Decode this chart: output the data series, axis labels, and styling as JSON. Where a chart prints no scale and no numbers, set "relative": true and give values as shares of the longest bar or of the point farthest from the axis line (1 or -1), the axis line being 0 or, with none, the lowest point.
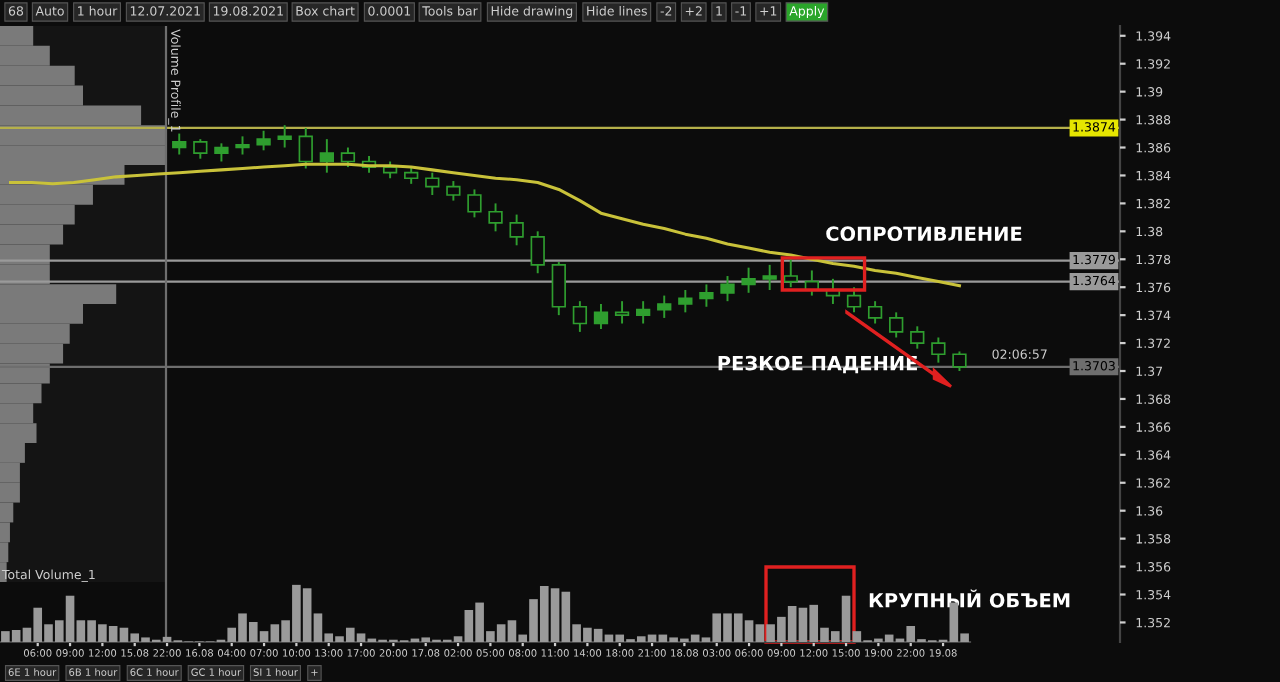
{
  "chart_data": [
    {
      "type": "candlestick",
      "color": "#2f9e2f",
      "grid": false,
      "tick_labels": "y",
      "ylim": [
        1.3506,
        1.3947
      ],
      "yticks": [
        1.352,
        1.354,
        1.356,
        1.358,
        1.36,
        1.362,
        1.364,
        1.366,
        1.368,
        1.37,
        1.372,
        1.374,
        1.376,
        1.378,
        1.38,
        1.382,
        1.384,
        1.386,
        1.388,
        1.39,
        1.392,
        1.394
      ],
      "categories": [
        null,
        null,
        null,
        null,
        null,
        null,
        null,
        null,
        null,
        null,
        null,
        null,
        null,
        null,
        null,
        null,
        null,
        null,
        null,
        null,
        null,
        null,
        null,
        null,
        null,
        null,
        null,
        null,
        null,
        null,
        null,
        null,
        null,
        null,
        null,
        null,
        null,
        null,
        null,
        null,
        null,
        null,
        null,
        null,
        null,
        null
      ],
      "ohlc": [
        null,
        null,
        null,
        null,
        null,
        null,
        null,
        null,
        [
          1.386,
          1.387,
          1.3855,
          1.3864
        ],
        [
          1.3864,
          1.3866,
          1.3852,
          1.3856
        ],
        [
          1.3856,
          1.3863,
          1.385,
          1.386
        ],
        [
          1.386,
          1.3868,
          1.3855,
          1.3862
        ],
        [
          1.3862,
          1.3872,
          1.3858,
          1.3866
        ],
        [
          1.3866,
          1.3876,
          1.386,
          1.3868
        ],
        [
          1.3868,
          1.3874,
          1.3845,
          1.385
        ],
        [
          1.385,
          1.3866,
          1.3842,
          1.3856
        ],
        [
          1.3856,
          1.386,
          1.3846,
          1.385
        ],
        [
          1.385,
          1.3854,
          1.3842,
          1.3846
        ],
        [
          1.3846,
          1.385,
          1.3838,
          1.3842
        ],
        [
          1.3842,
          1.3846,
          1.3834,
          1.3838
        ],
        [
          1.3838,
          1.3842,
          1.3826,
          1.3832
        ],
        [
          1.3832,
          1.3836,
          1.3822,
          1.3826
        ],
        [
          1.3826,
          1.383,
          1.381,
          1.3814
        ],
        [
          1.3814,
          1.382,
          1.38,
          1.3806
        ],
        [
          1.3806,
          1.3812,
          1.379,
          1.3796
        ],
        [
          1.3796,
          1.38,
          1.377,
          1.3776
        ],
        [
          1.3776,
          1.3778,
          1.374,
          1.3746
        ],
        [
          1.3746,
          1.375,
          1.3728,
          1.3734
        ],
        [
          1.3734,
          1.3748,
          1.373,
          1.3742
        ],
        [
          1.3742,
          1.375,
          1.3734,
          1.374
        ],
        [
          1.374,
          1.375,
          1.3734,
          1.3744
        ],
        [
          1.3744,
          1.3754,
          1.3738,
          1.3748
        ],
        [
          1.3748,
          1.3758,
          1.3742,
          1.3752
        ],
        [
          1.3752,
          1.3762,
          1.3746,
          1.3756
        ],
        [
          1.3756,
          1.3768,
          1.375,
          1.3762
        ],
        [
          1.3762,
          1.3774,
          1.3756,
          1.3766
        ],
        [
          1.3766,
          1.3776,
          1.3758,
          1.3768
        ],
        [
          1.3768,
          1.3782,
          1.376,
          1.3764
        ],
        [
          1.3764,
          1.3772,
          1.3754,
          1.3758
        ],
        [
          1.3758,
          1.3766,
          1.3748,
          1.3754
        ],
        [
          1.3754,
          1.376,
          1.3742,
          1.3746
        ],
        [
          1.3746,
          1.375,
          1.3734,
          1.3738
        ],
        [
          1.3738,
          1.3742,
          1.3724,
          1.3728
        ],
        [
          1.3728,
          1.3732,
          1.3716,
          1.372
        ],
        [
          1.372,
          1.3724,
          1.3706,
          1.3712
        ],
        [
          1.3712,
          1.3714,
          1.37,
          1.3703
        ]
      ],
      "series": [
        {
          "type": "line",
          "color": "#c9c23a",
          "values": [
            1.3835,
            1.3835,
            1.3834,
            1.3835,
            1.3837,
            1.3839,
            1.384,
            1.3841,
            1.3842,
            1.3843,
            1.3844,
            1.3845,
            1.3846,
            1.3847,
            1.3848,
            1.3848,
            1.3848,
            1.3847,
            1.3847,
            1.3846,
            1.3844,
            1.3842,
            1.384,
            1.3838,
            1.3837,
            1.3835,
            1.383,
            1.3822,
            1.3813,
            1.3809,
            1.3805,
            1.3802,
            1.3798,
            1.3795,
            1.3791,
            1.3788,
            1.3785,
            1.3783,
            1.378,
            1.3777,
            1.3775,
            1.3772,
            1.377,
            1.3767,
            1.3764,
            1.3761
          ]
        }
      ],
      "ref_lines": [
        {
          "axis": "y",
          "value": 1.3874,
          "label": "1.3874",
          "color": "#b5b04a"
        },
        {
          "axis": "y",
          "value": 1.3779,
          "label": "1.3779",
          "color": "#9a9a9a"
        },
        {
          "axis": "y",
          "value": 1.3764,
          "label": "1.3764",
          "color": "#9a9a9a"
        },
        {
          "axis": "y",
          "value": 1.3703,
          "label": "1.3703",
          "color": "#6e6e6e"
        }
      ],
      "annotations": [
        "СОПРОТИВЛЕНИЕ",
        "РЕЗКОЕ ПАДЕНИЕ",
        "02:06:57",
        "Volume Profile_1"
      ]
    },
    {
      "type": "bar",
      "title": "Total Volume_1",
      "color": "#9a9a9a",
      "relative": true,
      "tick_labels": "x",
      "categories": [
        null,
        null,
        null,
        "06:00",
        null,
        null,
        "09:00",
        null,
        null,
        "12:00",
        null,
        null,
        "15.08",
        null,
        null,
        "22:00",
        null,
        null,
        "16.08",
        null,
        null,
        "04:00",
        null,
        null,
        "07:00",
        null,
        null,
        "10:00",
        null,
        null,
        "13:00",
        null,
        null,
        "17:00",
        null,
        null,
        "20:00",
        null,
        null,
        "17.08",
        null,
        null,
        "02:00",
        null,
        null,
        "05:00",
        null,
        null,
        "08:00",
        null,
        null,
        "11:00",
        null,
        null,
        "14:00",
        null,
        null,
        "18:00",
        null,
        null,
        "21:00",
        null,
        null,
        "18.08",
        null,
        null,
        "03:00",
        null,
        null,
        "06:00",
        null,
        null,
        "09:00",
        null,
        null,
        "12:00",
        null,
        null,
        "15:00",
        null,
        null,
        "19:00",
        null,
        null,
        "22:00",
        null,
        null,
        "19.08",
        null,
        null
      ],
      "values": [
        0.19,
        0.21,
        0.25,
        0.6,
        0.31,
        0.38,
        0.81,
        0.38,
        0.38,
        0.31,
        0.28,
        0.25,
        0.15,
        0.08,
        0.04,
        0.09,
        0.03,
        0.01,
        0.01,
        0.01,
        0.04,
        0.25,
        0.5,
        0.35,
        0.19,
        0.31,
        0.38,
        1,
        0.94,
        0.5,
        0.15,
        0.1,
        0.25,
        0.15,
        0.06,
        0.04,
        0.04,
        0.03,
        0.06,
        0.08,
        0.04,
        0.04,
        0.1,
        0.56,
        0.69,
        0.19,
        0.31,
        0.38,
        0.13,
        0.75,
        0.98,
        0.94,
        0.88,
        0.31,
        0.25,
        0.23,
        0.13,
        0.13,
        0.05,
        0.1,
        0.13,
        0.13,
        0.08,
        0.06,
        0.13,
        0.08,
        0.5,
        0.5,
        0.5,
        0.38,
        0.31,
        0.31,
        0.44,
        0.63,
        0.6,
        0.65,
        0.25,
        0.19,
        0.81,
        0.19,
        0.03,
        0.06,
        0.13,
        0.06,
        0.28,
        0.05,
        0.03,
        0.04,
        0.69,
        0.15
      ],
      "annotations": [
        "КРУПНЫЙ ОБЪЕМ"
      ]
    },
    {
      "type": "bar",
      "orientation": "horizontal",
      "relative": true,
      "color": "#7a7a7a",
      "tick_labels": false,
      "categories": [
        null,
        null,
        null,
        null,
        null,
        null,
        null,
        null,
        null,
        null,
        null,
        null,
        null,
        null,
        null,
        null,
        null,
        null,
        null,
        null,
        null,
        null,
        null,
        null,
        null,
        null,
        null,
        null
      ],
      "values": [
        0.2,
        0.3,
        0.45,
        0.5,
        0.85,
        1,
        1,
        0.75,
        0.56,
        0.45,
        0.38,
        0.3,
        0.3,
        0.7,
        0.5,
        0.42,
        0.38,
        0.3,
        0.25,
        0.2,
        0.22,
        0.15,
        0.12,
        0.12,
        0.08,
        0.06,
        0.05,
        0.04
      ]
    },
    {
      "type": "other",
      "annotations": [
        "68",
        "Auto",
        "1 hour",
        "12.07.2021",
        "19.08.2021",
        "Box chart",
        "0.0001",
        "Tools bar",
        "Hide drawing",
        "Hide lines",
        "-2",
        "+2",
        "1",
        "-1",
        "+1",
        "Apply"
      ]
    },
    {
      "type": "other",
      "annotations": [
        "6E 1 hour",
        "6B 1 hour",
        "6C 1 hour",
        "GC 1 hour",
        "SI 1 hour",
        "+"
      ]
    }
  ]
}
